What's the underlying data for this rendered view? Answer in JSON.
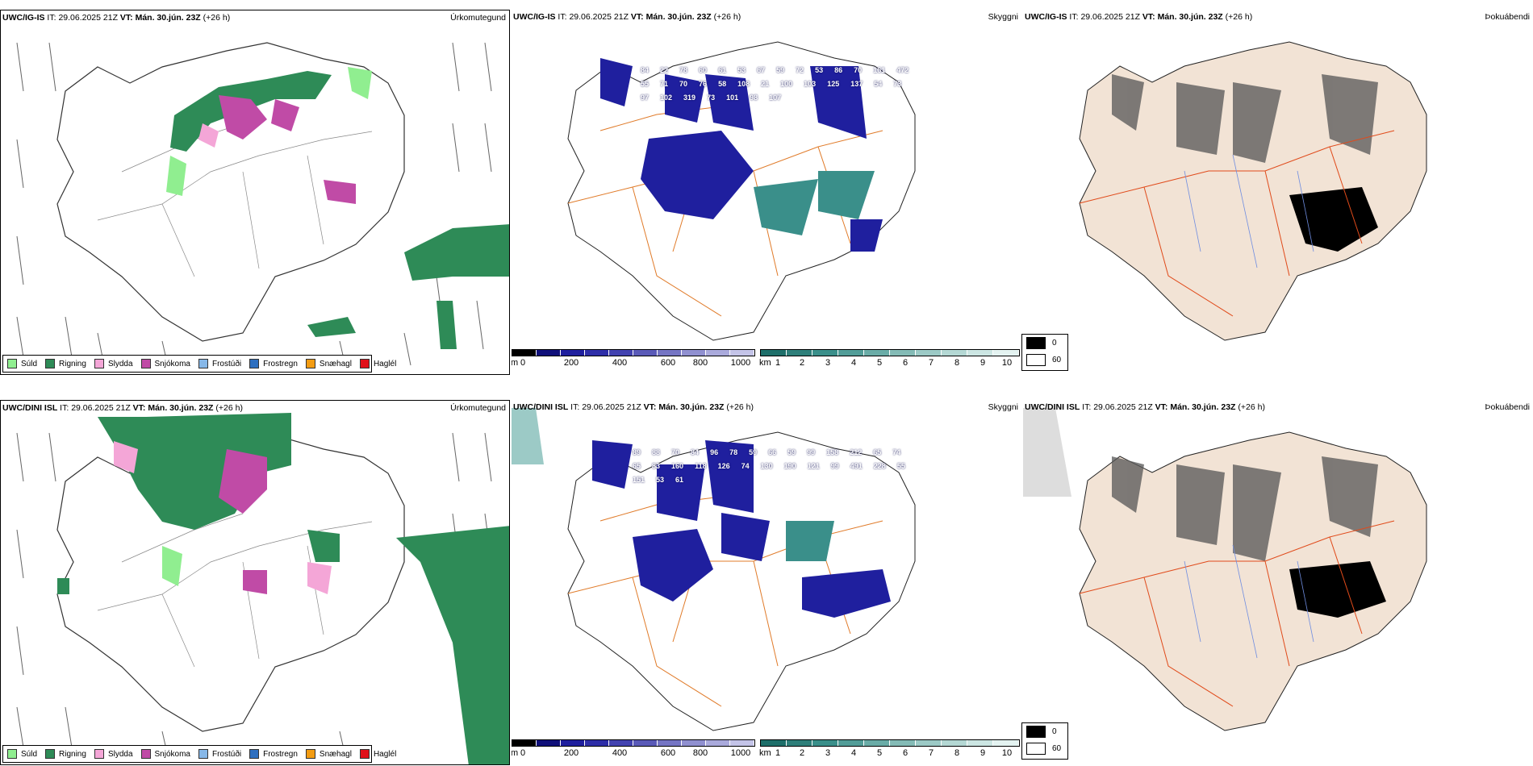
{
  "rows": [
    {
      "model": "UWC/IG-IS",
      "it_label": "IT:",
      "it_value": "29.06.2025 21Z",
      "vt_label": "VT:",
      "vt_value": "Mán. 30.jún. 23Z",
      "offset": "(+26 h)",
      "cloud_numbers": [
        "84",
        "22",
        "78",
        "60",
        "61",
        "53",
        "67",
        "59",
        "72",
        "53",
        "86",
        "70",
        "161",
        "472",
        "55",
        "71",
        "70",
        "76",
        "58",
        "108",
        "21",
        "100",
        "103",
        "125",
        "137",
        "54",
        "73",
        "97",
        "102",
        "319",
        "73",
        "101",
        "98",
        "107"
      ]
    },
    {
      "model": "UWC/DINI ISL",
      "it_label": "IT:",
      "it_value": "29.06.2025 21Z",
      "vt_label": "VT:",
      "vt_value": "Mán. 30.jún. 23Z",
      "offset": "(+26 h)",
      "cloud_numbers": [
        "89",
        "88",
        "70",
        "84",
        "96",
        "78",
        "59",
        "66",
        "59",
        "99",
        "158",
        "212",
        "65",
        "74",
        "65",
        "83",
        "160",
        "118",
        "126",
        "74",
        "130",
        "190",
        "121",
        "99",
        "491",
        "228",
        "55",
        "151",
        "53",
        "61"
      ]
    }
  ],
  "panel_titles": {
    "precip": "Úrkomutegund",
    "cloud": "Skyggni",
    "fog": "Þokuábendi"
  },
  "precip_legend": [
    {
      "label": "Súld",
      "color": "#90ee90"
    },
    {
      "label": "Rigning",
      "color": "#2e8b57"
    },
    {
      "label": "Slydda",
      "color": "#f4a6d7"
    },
    {
      "label": "Snjókoma",
      "color": "#c04ba6"
    },
    {
      "label": "Frostúði",
      "color": "#87b8e8"
    },
    {
      "label": "Frostregn",
      "color": "#2e6fbf"
    },
    {
      "label": "Snæhagl",
      "color": "#f39c12"
    },
    {
      "label": "Haglél",
      "color": "#e0101a"
    }
  ],
  "cloudbase_scale": {
    "unit": "m",
    "ticks": [
      "0",
      "200",
      "400",
      "600",
      "800",
      "1000"
    ]
  },
  "visibility_scale": {
    "unit": "km",
    "ticks": [
      "1",
      "2",
      "3",
      "4",
      "5",
      "6",
      "7",
      "8",
      "9",
      "10"
    ]
  },
  "fog_legend": [
    {
      "label": "0",
      "color": "#000000"
    },
    {
      "label": "60",
      "color": "#ffffff"
    }
  ],
  "colors": {
    "rain": "#2e8b57",
    "drizzle": "#90ee90",
    "sleet": "#f4a6d7",
    "snow": "#c04ba6",
    "cloud_low": "#1f1f9e",
    "vis_low": "#3a8f8a",
    "roads": "#e07b2a",
    "land_tint": "#f2e3d5"
  }
}
